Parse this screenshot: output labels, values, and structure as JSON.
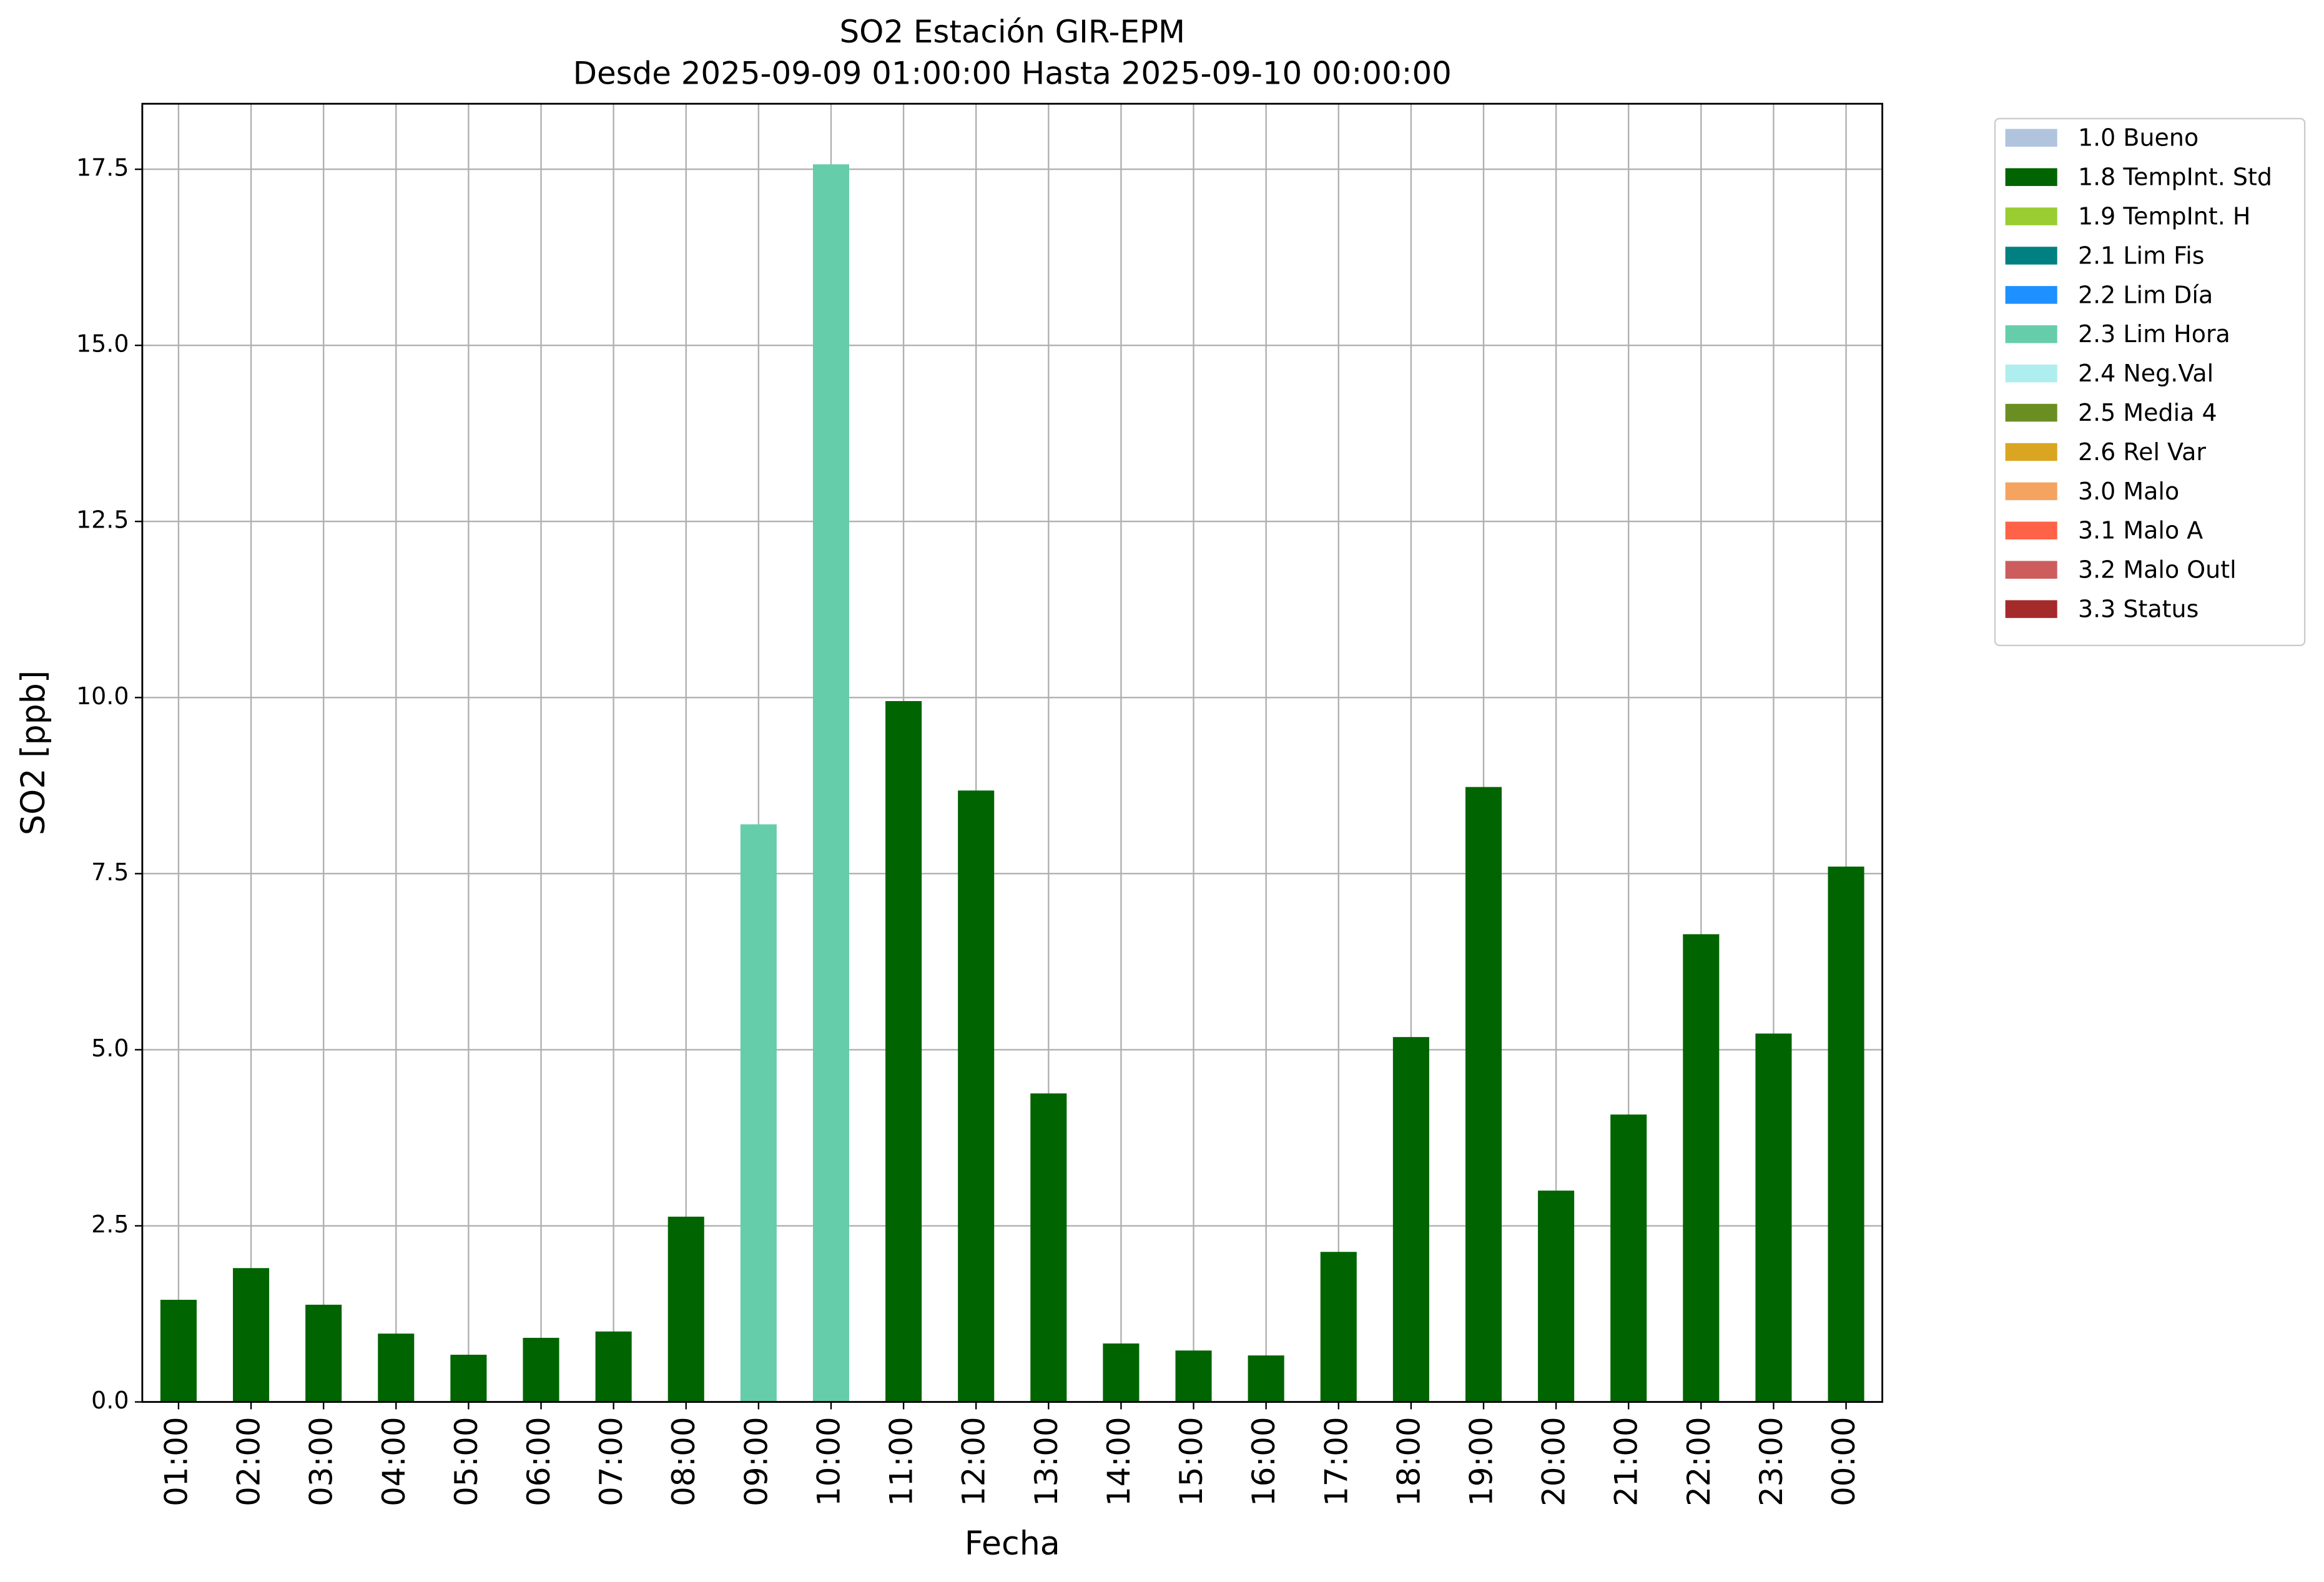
{
  "chart_data": {
    "type": "bar",
    "stacked": true,
    "title": "SO2 Estación GIR-EPM",
    "subtitle": "Desde 2025-09-09 01:00:00 Hasta 2025-09-10 00:00:00",
    "x_label": "Fecha",
    "y_label": "SO2 [ppb]",
    "categories": [
      "01:00",
      "02:00",
      "03:00",
      "04:00",
      "05:00",
      "06:00",
      "07:00",
      "08:00",
      "09:00",
      "10:00",
      "11:00",
      "12:00",
      "13:00",
      "14:00",
      "15:00",
      "16:00",
      "17:00",
      "18:00",
      "19:00",
      "20:00",
      "21:00",
      "22:00",
      "23:00",
      "00:00"
    ],
    "series": [
      {
        "name": "1.0 Bueno",
        "color": "#b0c4de",
        "values": [
          null,
          null,
          null,
          null,
          null,
          null,
          null,
          null,
          null,
          null,
          null,
          null,
          null,
          null,
          null,
          null,
          null,
          null,
          null,
          null,
          null,
          null,
          null,
          null
        ]
      },
      {
        "name": "1.8 TempInt. Std",
        "color": "#006400",
        "values": [
          1.45,
          1.9,
          1.38,
          0.97,
          0.67,
          0.91,
          1.0,
          2.63,
          null,
          null,
          9.95,
          8.68,
          4.38,
          0.83,
          0.73,
          0.66,
          2.13,
          5.18,
          8.73,
          3.0,
          4.08,
          6.64,
          5.23,
          7.6
        ]
      },
      {
        "name": "1.9 TempInt. H",
        "color": "#9acd32",
        "values": [
          null,
          null,
          null,
          null,
          null,
          null,
          null,
          null,
          null,
          null,
          null,
          null,
          null,
          null,
          null,
          null,
          null,
          null,
          null,
          null,
          null,
          null,
          null,
          null
        ]
      },
      {
        "name": "2.1 Lim Fis",
        "color": "#008080",
        "values": [
          null,
          null,
          null,
          null,
          null,
          null,
          null,
          null,
          null,
          null,
          null,
          null,
          null,
          null,
          null,
          null,
          null,
          null,
          null,
          null,
          null,
          null,
          null,
          null
        ]
      },
      {
        "name": "2.2 Lim Día",
        "color": "#1e90ff",
        "values": [
          null,
          null,
          null,
          null,
          null,
          null,
          null,
          null,
          null,
          null,
          null,
          null,
          null,
          null,
          null,
          null,
          null,
          null,
          null,
          null,
          null,
          null,
          null,
          null
        ]
      },
      {
        "name": "2.3 Lim Hora",
        "color": "#66cdaa",
        "values": [
          null,
          null,
          null,
          null,
          null,
          null,
          null,
          null,
          8.2,
          17.57,
          null,
          null,
          null,
          null,
          null,
          null,
          null,
          null,
          null,
          null,
          null,
          null,
          null,
          null
        ]
      },
      {
        "name": "2.4 Neg.Val",
        "color": "#afeeee",
        "values": [
          null,
          null,
          null,
          null,
          null,
          null,
          null,
          null,
          null,
          null,
          null,
          null,
          null,
          null,
          null,
          null,
          null,
          null,
          null,
          null,
          null,
          null,
          null,
          null
        ]
      },
      {
        "name": "2.5 Media 4",
        "color": "#6b8e23",
        "values": [
          null,
          null,
          null,
          null,
          null,
          null,
          null,
          null,
          null,
          null,
          null,
          null,
          null,
          null,
          null,
          null,
          null,
          null,
          null,
          null,
          null,
          null,
          null,
          null
        ]
      },
      {
        "name": "2.6 Rel Var",
        "color": "#daa520",
        "values": [
          null,
          null,
          null,
          null,
          null,
          null,
          null,
          null,
          null,
          null,
          null,
          null,
          null,
          null,
          null,
          null,
          null,
          null,
          null,
          null,
          null,
          null,
          null,
          null
        ]
      },
      {
        "name": "3.0 Malo",
        "color": "#f4a460",
        "values": [
          null,
          null,
          null,
          null,
          null,
          null,
          null,
          null,
          null,
          null,
          null,
          null,
          null,
          null,
          null,
          null,
          null,
          null,
          null,
          null,
          null,
          null,
          null,
          null
        ]
      },
      {
        "name": "3.1 Malo A",
        "color": "#ff6347",
        "values": [
          null,
          null,
          null,
          null,
          null,
          null,
          null,
          null,
          null,
          null,
          null,
          null,
          null,
          null,
          null,
          null,
          null,
          null,
          null,
          null,
          null,
          null,
          null,
          null
        ]
      },
      {
        "name": "3.2 Malo Outl",
        "color": "#cd5c5c",
        "values": [
          null,
          null,
          null,
          null,
          null,
          null,
          null,
          null,
          null,
          null,
          null,
          null,
          null,
          null,
          null,
          null,
          null,
          null,
          null,
          null,
          null,
          null,
          null,
          null
        ]
      },
      {
        "name": "3.3 Status",
        "color": "#a52a2a",
        "values": [
          null,
          null,
          null,
          null,
          null,
          null,
          null,
          null,
          null,
          null,
          null,
          null,
          null,
          null,
          null,
          null,
          null,
          null,
          null,
          null,
          null,
          null,
          null,
          null
        ]
      }
    ],
    "ylim": [
      0,
      18.43
    ],
    "yticks": [
      {
        "value": 0,
        "label": "0.0"
      },
      2.5,
      {
        "value": 5,
        "label": "5.0"
      },
      7.5,
      {
        "value": 10,
        "label": "10.0"
      },
      12.5,
      {
        "value": 15,
        "label": "15.0"
      },
      17.5
    ],
    "grid": true,
    "legend": "outside right"
  }
}
